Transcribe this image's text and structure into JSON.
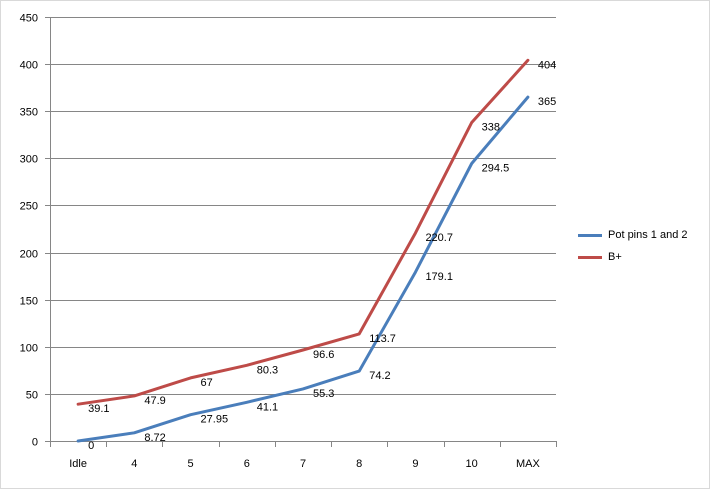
{
  "chart_data": {
    "type": "line",
    "categories": [
      "Idle",
      "4",
      "5",
      "6",
      "7",
      "8",
      "9",
      "10",
      "MAX"
    ],
    "ylim": [
      0,
      450
    ],
    "yticks": [
      0,
      50,
      100,
      150,
      200,
      250,
      300,
      350,
      400,
      450
    ],
    "grid": true,
    "legend_position": "right",
    "series": [
      {
        "name": "Pot pins 1 and 2",
        "color": "#4a7ebb",
        "values": [
          0,
          8.72,
          27.95,
          41.1,
          55.3,
          74.2,
          179.1,
          294.5,
          365
        ],
        "labels": [
          "0",
          "8.72",
          "27.95",
          "41.1",
          "55.3",
          "74.2",
          "179.1",
          "294.5",
          "365"
        ]
      },
      {
        "name": "B+",
        "color": "#be4b48",
        "values": [
          39.1,
          47.9,
          67,
          80.3,
          96.6,
          113.7,
          220.7,
          338,
          404
        ],
        "labels": [
          "39.1",
          "47.9",
          "67",
          "80.3",
          "96.6",
          "113.7",
          "220.7",
          "338",
          "404"
        ]
      }
    ]
  }
}
